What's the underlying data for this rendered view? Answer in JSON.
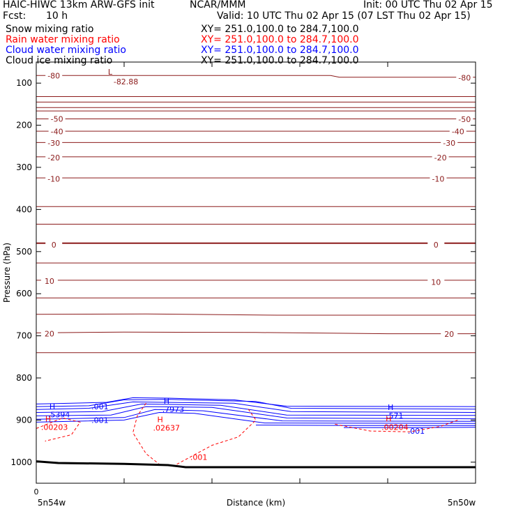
{
  "header": {
    "line1_left": "HAIC-HIWC 13km ARW-GFS init",
    "line1_mid": "NCAR/MMM",
    "line1_right": "Init: 00 UTC Thu 02 Apr 15",
    "line2_left": "Fcst:",
    "line2_fcst": "10 h",
    "line2_right": "Valid: 10 UTC Thu 02 Apr 15 (07 LST Thu 02 Apr 15)"
  },
  "fields": [
    {
      "name": "Snow mixing ratio",
      "xy": "XY= 251.0,100.0 to 284.7,100.0",
      "color": "#000000"
    },
    {
      "name": "Rain water mixing ratio",
      "xy": "XY= 251.0,100.0 to 284.7,100.0",
      "color": "#ff0000"
    },
    {
      "name": "Cloud water mixing ratio",
      "xy": "XY= 251.0,100.0 to 284.7,100.0",
      "color": "#0000ff"
    },
    {
      "name": "Cloud ice mixing ratio",
      "xy": "XY= 251.0,100.0 to 284.7,100.0",
      "color": "#000000"
    }
  ],
  "colors": {
    "temperature": "#8b1a1a",
    "cloud_water": "#0000ff",
    "rain_water": "#ff0000",
    "terrain": "#000000"
  },
  "chart_data": {
    "type": "line",
    "title": "",
    "ylabel": "Pressure (hPa)",
    "xlabel": "Distance (km)",
    "x_left_label": "5n54w",
    "x_right_label": "5n50w",
    "x_origin_label": "0",
    "ylim": [
      1050,
      50
    ],
    "yscale": "linear",
    "yticks": [
      100,
      200,
      300,
      400,
      500,
      600,
      700,
      800,
      900,
      1000
    ],
    "xlim": [
      0,
      1
    ],
    "xticks": [
      0,
      0.2,
      0.4,
      0.6,
      0.8,
      1.0
    ],
    "temperature_contours": [
      {
        "label": "-80",
        "points": [
          [
            0.0,
            82
          ],
          [
            0.67,
            82
          ],
          [
            0.69,
            86
          ],
          [
            1.0,
            86
          ]
        ],
        "label_left": [
          0.04,
          82
        ],
        "label_right": [
          0.975,
          87
        ]
      },
      {
        "label": "",
        "points": [
          [
            0.0,
            132
          ],
          [
            1.0,
            132
          ]
        ]
      },
      {
        "label": "",
        "points": [
          [
            0.0,
            145
          ],
          [
            1.0,
            145
          ]
        ]
      },
      {
        "label": "",
        "points": [
          [
            0.0,
            158
          ],
          [
            1.0,
            158
          ]
        ]
      },
      {
        "label": "",
        "points": [
          [
            0.0,
            166
          ],
          [
            1.0,
            166
          ]
        ]
      },
      {
        "label": "-50",
        "points": [
          [
            0.0,
            185
          ],
          [
            1.0,
            185
          ]
        ],
        "label_left": [
          0.047,
          185
        ],
        "label_right": [
          0.975,
          186
        ]
      },
      {
        "label": "-40",
        "points": [
          [
            0.0,
            214
          ],
          [
            1.0,
            214
          ]
        ],
        "label_left": [
          0.047,
          215
        ],
        "label_right": [
          0.96,
          215
        ]
      },
      {
        "label": "-30",
        "points": [
          [
            0.0,
            241
          ],
          [
            1.0,
            241
          ]
        ],
        "label_left": [
          0.04,
          242
        ],
        "label_right": [
          0.94,
          242
        ]
      },
      {
        "label": "-20",
        "points": [
          [
            0.0,
            275
          ],
          [
            1.0,
            275
          ]
        ],
        "label_left": [
          0.04,
          277
        ],
        "label_right": [
          0.92,
          277
        ]
      },
      {
        "label": "-10",
        "points": [
          [
            0.0,
            325
          ],
          [
            1.0,
            325
          ]
        ],
        "label_left": [
          0.04,
          327
        ],
        "label_right": [
          0.915,
          327
        ]
      },
      {
        "label": "",
        "points": [
          [
            0.0,
            393
          ],
          [
            1.0,
            393
          ]
        ]
      },
      {
        "label": "",
        "points": [
          [
            0.0,
            435
          ],
          [
            1.0,
            435
          ]
        ]
      },
      {
        "label": "0",
        "points": [
          [
            0.0,
            480
          ],
          [
            1.0,
            480
          ]
        ],
        "label_left": [
          0.04,
          484
        ],
        "label_right": [
          0.91,
          484
        ]
      },
      {
        "label": "",
        "points": [
          [
            0.0,
            527
          ],
          [
            1.0,
            527
          ]
        ]
      },
      {
        "label": "10",
        "points": [
          [
            0.0,
            568
          ],
          [
            1.0,
            568
          ]
        ],
        "label_left": [
          0.03,
          570
        ],
        "label_right": [
          0.91,
          572
        ]
      },
      {
        "label": "",
        "points": [
          [
            0.0,
            610
          ],
          [
            1.0,
            610
          ]
        ]
      },
      {
        "label": "",
        "points": [
          [
            0.0,
            649
          ],
          [
            0.25,
            648
          ],
          [
            0.55,
            651
          ],
          [
            1.0,
            651
          ]
        ]
      },
      {
        "label": "20",
        "points": [
          [
            0.0,
            693
          ],
          [
            0.2,
            691
          ],
          [
            0.5,
            692
          ],
          [
            0.8,
            695
          ],
          [
            1.0,
            695
          ]
        ],
        "label_left": [
          0.03,
          695
        ],
        "label_right": [
          0.94,
          696
        ]
      },
      {
        "label": "",
        "points": [
          [
            0.0,
            740
          ],
          [
            0.3,
            740
          ],
          [
            1.0,
            740
          ]
        ]
      }
    ],
    "low_marker": {
      "label": "L",
      "value": "-82.88",
      "x": 0.195,
      "p": 100
    },
    "cloud_water": {
      "contours": [
        {
          "points": [
            [
              0.0,
              862
            ],
            [
              0.08,
              860
            ],
            [
              0.16,
              858
            ],
            [
              0.22,
              847
            ],
            [
              0.3,
              848
            ],
            [
              0.45,
              852
            ],
            [
              0.57,
              867
            ],
            [
              1.0,
              868
            ]
          ]
        },
        {
          "points": [
            [
              0.0,
              868
            ],
            [
              0.12,
              866
            ],
            [
              0.2,
              852
            ],
            [
              0.3,
              851
            ],
            [
              0.5,
              856
            ],
            [
              0.58,
              872
            ],
            [
              1.0,
              874
            ]
          ]
        },
        {
          "points": [
            [
              0.0,
              875
            ],
            [
              0.12,
              872
            ],
            [
              0.22,
              857
            ],
            [
              0.45,
              860
            ],
            [
              0.58,
              880
            ],
            [
              1.0,
              882
            ]
          ]
        },
        {
          "points": [
            [
              0.0,
              882
            ],
            [
              0.15,
              880
            ],
            [
              0.24,
              862
            ],
            [
              0.42,
              865
            ],
            [
              0.57,
              888
            ],
            [
              1.0,
              889
            ]
          ]
        },
        {
          "points": [
            [
              0.0,
              890
            ],
            [
              0.17,
              888
            ],
            [
              0.25,
              868
            ],
            [
              0.4,
              870
            ],
            [
              0.57,
              895
            ],
            [
              1.0,
              897
            ]
          ]
        },
        {
          "points": [
            [
              0.0,
              898
            ],
            [
              0.2,
              894
            ],
            [
              0.27,
              875
            ],
            [
              0.38,
              878
            ],
            [
              0.56,
              902
            ],
            [
              1.0,
              903
            ]
          ]
        },
        {
          "points": [
            [
              0.0,
              905
            ],
            [
              0.2,
              900
            ],
            [
              0.28,
              882
            ],
            [
              0.36,
              884
            ],
            [
              0.52,
              907
            ],
            [
              1.0,
              908
            ]
          ]
        },
        {
          "points": [
            [
              0.5,
              912
            ],
            [
              0.75,
              913
            ],
            [
              1.0,
              913
            ]
          ]
        },
        {
          "points": [
            [
              0.7,
              918
            ],
            [
              0.85,
              918
            ],
            [
              1.0,
              917
            ]
          ]
        }
      ],
      "labels": [
        {
          "text": ".001",
          "x": 0.145,
          "p": 868
        },
        {
          "text": ".001",
          "x": 0.145,
          "p": 900
        },
        {
          "text": ".001",
          "x": 0.865,
          "p": 926
        }
      ],
      "maxima": [
        {
          "label": "H",
          "value": ".5394",
          "x": 0.03,
          "p": 880
        },
        {
          "label": "H",
          "value": ".7973",
          "x": 0.29,
          "p": 868
        },
        {
          "label": "H",
          "value": ".571",
          "x": 0.8,
          "p": 883
        }
      ]
    },
    "rain_water": {
      "contours": [
        {
          "points": [
            [
              0.0,
              920
            ],
            [
              0.06,
              895
            ],
            [
              0.1,
              905
            ],
            [
              0.08,
              935
            ],
            [
              0.02,
              950
            ]
          ]
        },
        {
          "points": [
            [
              0.25,
              860
            ],
            [
              0.23,
              890
            ],
            [
              0.22,
              930
            ],
            [
              0.25,
              980
            ],
            [
              0.28,
              1005
            ]
          ]
        },
        {
          "points": [
            [
              0.32,
              1005
            ],
            [
              0.4,
              960
            ],
            [
              0.46,
              940
            ],
            [
              0.5,
              900
            ],
            [
              0.48,
              870
            ]
          ]
        },
        {
          "points": [
            [
              0.68,
              910
            ],
            [
              0.76,
              926
            ],
            [
              0.85,
              928
            ],
            [
              0.92,
              915
            ],
            [
              0.96,
              900
            ]
          ]
        }
      ],
      "labels": [
        {
          "text": ".001",
          "x": 0.37,
          "p": 988
        }
      ],
      "maxima": [
        {
          "label": "H",
          "value": ".00203",
          "x": 0.03,
          "p": 900
        },
        {
          "label": "H",
          "value": ".02637",
          "x": 0.285,
          "p": 902
        },
        {
          "label": "H",
          "value": ".00204",
          "x": 0.805,
          "p": 900
        }
      ]
    },
    "terrain": {
      "points": [
        [
          0.0,
          998
        ],
        [
          0.05,
          1002
        ],
        [
          0.2,
          1004
        ],
        [
          0.3,
          1007
        ],
        [
          0.34,
          1012
        ],
        [
          0.4,
          1012
        ],
        [
          1.0,
          1012
        ]
      ]
    }
  }
}
